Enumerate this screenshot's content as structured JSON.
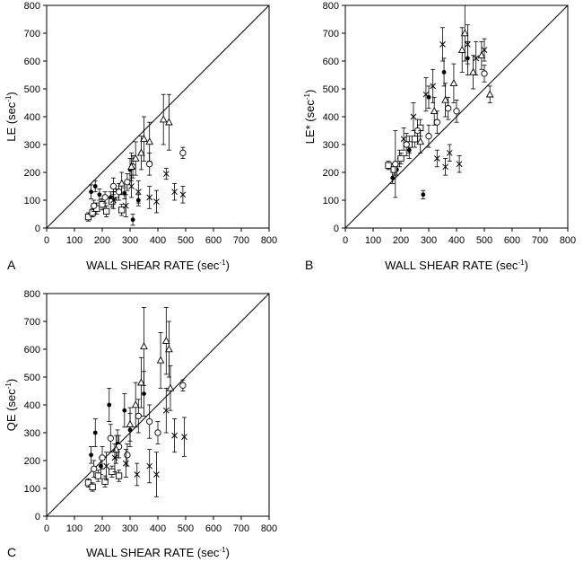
{
  "chart_data": [
    {
      "panel": "A",
      "type": "scatter",
      "xlabel": "WALL SHEAR RATE",
      "xlabel_unit": "(sec",
      "ylabel": "LE",
      "ylabel_unit": "(sec",
      "unit_exp": "-1",
      "xlim": [
        0,
        800
      ],
      "ylim": [
        0,
        800
      ],
      "xticks": [
        0,
        100,
        200,
        300,
        400,
        500,
        600,
        700,
        800
      ],
      "yticks": [
        0,
        100,
        200,
        300,
        400,
        500,
        600,
        700,
        800
      ],
      "identity_line": true,
      "points": [
        {
          "m": "dot",
          "x": 160,
          "y": 130,
          "e": 25
        },
        {
          "m": "dot",
          "x": 175,
          "y": 150,
          "e": 20
        },
        {
          "m": "dot",
          "x": 190,
          "y": 120,
          "e": 20
        },
        {
          "m": "dot",
          "x": 230,
          "y": 110,
          "e": 20
        },
        {
          "m": "dot",
          "x": 280,
          "y": 125,
          "e": 20
        },
        {
          "m": "dot",
          "x": 330,
          "y": 100,
          "e": 20
        },
        {
          "m": "dot",
          "x": 310,
          "y": 30,
          "e": 20
        },
        {
          "m": "dot",
          "x": 300,
          "y": 210,
          "e": 40
        },
        {
          "m": "square",
          "x": 150,
          "y": 40,
          "e": 15
        },
        {
          "m": "square",
          "x": 165,
          "y": 55,
          "e": 15
        },
        {
          "m": "square",
          "x": 180,
          "y": 70,
          "e": 20
        },
        {
          "m": "square",
          "x": 200,
          "y": 85,
          "e": 20
        },
        {
          "m": "square",
          "x": 215,
          "y": 60,
          "e": 20
        },
        {
          "m": "square",
          "x": 235,
          "y": 95,
          "e": 20
        },
        {
          "m": "square",
          "x": 250,
          "y": 120,
          "e": 20
        },
        {
          "m": "square",
          "x": 270,
          "y": 65,
          "e": 20
        },
        {
          "m": "circle",
          "x": 170,
          "y": 80,
          "e": 20
        },
        {
          "m": "circle",
          "x": 210,
          "y": 110,
          "e": 20
        },
        {
          "m": "circle",
          "x": 240,
          "y": 150,
          "e": 30
        },
        {
          "m": "circle",
          "x": 260,
          "y": 130,
          "e": 30
        },
        {
          "m": "circle",
          "x": 290,
          "y": 165,
          "e": 30
        },
        {
          "m": "circle",
          "x": 310,
          "y": 220,
          "e": 40
        },
        {
          "m": "circle",
          "x": 370,
          "y": 230,
          "e": 40
        },
        {
          "m": "circle",
          "x": 490,
          "y": 270,
          "e": 20
        },
        {
          "m": "tri",
          "x": 270,
          "y": 160,
          "e": 40
        },
        {
          "m": "tri",
          "x": 305,
          "y": 220,
          "e": 50
        },
        {
          "m": "tri",
          "x": 340,
          "y": 270,
          "e": 60
        },
        {
          "m": "tri",
          "x": 350,
          "y": 320,
          "e": 80
        },
        {
          "m": "tri",
          "x": 370,
          "y": 310,
          "e": 70
        },
        {
          "m": "tri",
          "x": 420,
          "y": 390,
          "e": 90
        },
        {
          "m": "tri",
          "x": 440,
          "y": 380,
          "e": 100
        },
        {
          "m": "tri",
          "x": 320,
          "y": 250,
          "e": 60
        },
        {
          "m": "x",
          "x": 240,
          "y": 100,
          "e": 30
        },
        {
          "m": "x",
          "x": 285,
          "y": 80,
          "e": 40
        },
        {
          "m": "x",
          "x": 305,
          "y": 150,
          "e": 40
        },
        {
          "m": "x",
          "x": 330,
          "y": 130,
          "e": 40
        },
        {
          "m": "x",
          "x": 370,
          "y": 110,
          "e": 40
        },
        {
          "m": "x",
          "x": 395,
          "y": 95,
          "e": 40
        },
        {
          "m": "x",
          "x": 430,
          "y": 195,
          "e": 20
        },
        {
          "m": "x",
          "x": 460,
          "y": 130,
          "e": 30
        },
        {
          "m": "x",
          "x": 490,
          "y": 120,
          "e": 30
        }
      ]
    },
    {
      "panel": "B",
      "type": "scatter",
      "xlabel": "WALL SHEAR RATE",
      "xlabel_unit": "(sec",
      "ylabel": "LE*",
      "ylabel_unit": "(sec",
      "unit_exp": "-1",
      "xlim": [
        0,
        800
      ],
      "ylim": [
        0,
        800
      ],
      "xticks": [
        0,
        100,
        200,
        300,
        400,
        500,
        600,
        700,
        800
      ],
      "yticks": [
        0,
        100,
        200,
        300,
        400,
        500,
        600,
        700,
        800
      ],
      "identity_line": true,
      "points": [
        {
          "m": "dot",
          "x": 170,
          "y": 180,
          "e": 20
        },
        {
          "m": "dot",
          "x": 185,
          "y": 210,
          "e": 20
        },
        {
          "m": "dot",
          "x": 195,
          "y": 250,
          "e": 30
        },
        {
          "m": "dot",
          "x": 230,
          "y": 280,
          "e": 30
        },
        {
          "m": "dot",
          "x": 280,
          "y": 120,
          "e": 15
        },
        {
          "m": "dot",
          "x": 300,
          "y": 470,
          "e": 40
        },
        {
          "m": "dot",
          "x": 355,
          "y": 560,
          "e": 50
        },
        {
          "m": "dot",
          "x": 440,
          "y": 610,
          "e": 60
        },
        {
          "m": "square",
          "x": 155,
          "y": 225,
          "e": 15
        },
        {
          "m": "square",
          "x": 175,
          "y": 210,
          "e": 20
        },
        {
          "m": "square",
          "x": 200,
          "y": 250,
          "e": 20
        },
        {
          "m": "square",
          "x": 230,
          "y": 300,
          "e": 30
        },
        {
          "m": "square",
          "x": 250,
          "y": 320,
          "e": 30
        },
        {
          "m": "square",
          "x": 270,
          "y": 360,
          "e": 30
        },
        {
          "m": "circle",
          "x": 180,
          "y": 230,
          "e": 120
        },
        {
          "m": "circle",
          "x": 220,
          "y": 300,
          "e": 40
        },
        {
          "m": "circle",
          "x": 260,
          "y": 350,
          "e": 40
        },
        {
          "m": "circle",
          "x": 300,
          "y": 330,
          "e": 40
        },
        {
          "m": "circle",
          "x": 330,
          "y": 380,
          "e": 40
        },
        {
          "m": "circle",
          "x": 370,
          "y": 430,
          "e": 40
        },
        {
          "m": "circle",
          "x": 400,
          "y": 420,
          "e": 40
        },
        {
          "m": "circle",
          "x": 500,
          "y": 555,
          "e": 30
        },
        {
          "m": "tri",
          "x": 270,
          "y": 310,
          "e": 40
        },
        {
          "m": "tri",
          "x": 320,
          "y": 420,
          "e": 50
        },
        {
          "m": "tri",
          "x": 360,
          "y": 460,
          "e": 60
        },
        {
          "m": "tri",
          "x": 390,
          "y": 520,
          "e": 70
        },
        {
          "m": "tri",
          "x": 420,
          "y": 640,
          "e": 80
        },
        {
          "m": "tri",
          "x": 430,
          "y": 700,
          "e": 100
        },
        {
          "m": "tri",
          "x": 460,
          "y": 560,
          "e": 60
        },
        {
          "m": "tri",
          "x": 490,
          "y": 620,
          "e": 50
        },
        {
          "m": "tri",
          "x": 520,
          "y": 480,
          "e": 30
        },
        {
          "m": "x",
          "x": 210,
          "y": 320,
          "e": 40
        },
        {
          "m": "x",
          "x": 245,
          "y": 400,
          "e": 50
        },
        {
          "m": "x",
          "x": 290,
          "y": 480,
          "e": 60
        },
        {
          "m": "x",
          "x": 315,
          "y": 510,
          "e": 60
        },
        {
          "m": "x",
          "x": 330,
          "y": 250,
          "e": 30
        },
        {
          "m": "x",
          "x": 360,
          "y": 220,
          "e": 30
        },
        {
          "m": "x",
          "x": 375,
          "y": 270,
          "e": 30
        },
        {
          "m": "x",
          "x": 410,
          "y": 230,
          "e": 30
        },
        {
          "m": "x",
          "x": 440,
          "y": 660,
          "e": 70
        },
        {
          "m": "x",
          "x": 470,
          "y": 610,
          "e": 60
        },
        {
          "m": "x",
          "x": 500,
          "y": 640,
          "e": 40
        },
        {
          "m": "x",
          "x": 350,
          "y": 660,
          "e": 60
        }
      ]
    },
    {
      "panel": "C",
      "type": "scatter",
      "xlabel": "WALL SHEAR RATE",
      "xlabel_unit": "(sec",
      "ylabel": "QE",
      "ylabel_unit": "(sec",
      "unit_exp": "-1",
      "xlim": [
        0,
        800
      ],
      "ylim": [
        0,
        800
      ],
      "xticks": [
        0,
        100,
        200,
        300,
        400,
        500,
        600,
        700,
        800
      ],
      "yticks": [
        0,
        100,
        200,
        300,
        400,
        500,
        600,
        700,
        800
      ],
      "identity_line": true,
      "points": [
        {
          "m": "dot",
          "x": 160,
          "y": 220,
          "e": 30
        },
        {
          "m": "dot",
          "x": 175,
          "y": 300,
          "e": 50
        },
        {
          "m": "dot",
          "x": 195,
          "y": 180,
          "e": 30
        },
        {
          "m": "dot",
          "x": 225,
          "y": 400,
          "e": 60
        },
        {
          "m": "dot",
          "x": 255,
          "y": 260,
          "e": 50
        },
        {
          "m": "dot",
          "x": 280,
          "y": 380,
          "e": 60
        },
        {
          "m": "dot",
          "x": 300,
          "y": 310,
          "e": 60
        },
        {
          "m": "dot",
          "x": 350,
          "y": 440,
          "e": 80
        },
        {
          "m": "square",
          "x": 150,
          "y": 120,
          "e": 15
        },
        {
          "m": "square",
          "x": 165,
          "y": 105,
          "e": 15
        },
        {
          "m": "square",
          "x": 185,
          "y": 145,
          "e": 20
        },
        {
          "m": "square",
          "x": 210,
          "y": 125,
          "e": 20
        },
        {
          "m": "square",
          "x": 235,
          "y": 160,
          "e": 20
        },
        {
          "m": "square",
          "x": 260,
          "y": 145,
          "e": 20
        },
        {
          "m": "circle",
          "x": 170,
          "y": 170,
          "e": 30
        },
        {
          "m": "circle",
          "x": 200,
          "y": 210,
          "e": 40
        },
        {
          "m": "circle",
          "x": 230,
          "y": 280,
          "e": 50
        },
        {
          "m": "circle",
          "x": 260,
          "y": 250,
          "e": 40
        },
        {
          "m": "circle",
          "x": 290,
          "y": 220,
          "e": 40
        },
        {
          "m": "circle",
          "x": 330,
          "y": 360,
          "e": 60
        },
        {
          "m": "circle",
          "x": 370,
          "y": 340,
          "e": 60
        },
        {
          "m": "circle",
          "x": 400,
          "y": 300,
          "e": 40
        },
        {
          "m": "circle",
          "x": 490,
          "y": 470,
          "e": 20
        },
        {
          "m": "tri",
          "x": 250,
          "y": 240,
          "e": 50
        },
        {
          "m": "tri",
          "x": 300,
          "y": 330,
          "e": 60
        },
        {
          "m": "tri",
          "x": 320,
          "y": 400,
          "e": 80
        },
        {
          "m": "tri",
          "x": 340,
          "y": 480,
          "e": 90
        },
        {
          "m": "tri",
          "x": 350,
          "y": 610,
          "e": 140
        },
        {
          "m": "tri",
          "x": 410,
          "y": 560,
          "e": 100
        },
        {
          "m": "tri",
          "x": 430,
          "y": 630,
          "e": 120
        },
        {
          "m": "tri",
          "x": 440,
          "y": 600,
          "e": 100
        },
        {
          "m": "tri",
          "x": 445,
          "y": 460,
          "e": 80
        },
        {
          "m": "x",
          "x": 215,
          "y": 180,
          "e": 50
        },
        {
          "m": "x",
          "x": 245,
          "y": 210,
          "e": 50
        },
        {
          "m": "x",
          "x": 285,
          "y": 190,
          "e": 50
        },
        {
          "m": "x",
          "x": 325,
          "y": 150,
          "e": 40
        },
        {
          "m": "x",
          "x": 370,
          "y": 180,
          "e": 60
        },
        {
          "m": "x",
          "x": 395,
          "y": 150,
          "e": 80
        },
        {
          "m": "x",
          "x": 430,
          "y": 380,
          "e": 80
        },
        {
          "m": "x",
          "x": 460,
          "y": 290,
          "e": 60
        },
        {
          "m": "x",
          "x": 495,
          "y": 285,
          "e": 70
        }
      ]
    }
  ]
}
